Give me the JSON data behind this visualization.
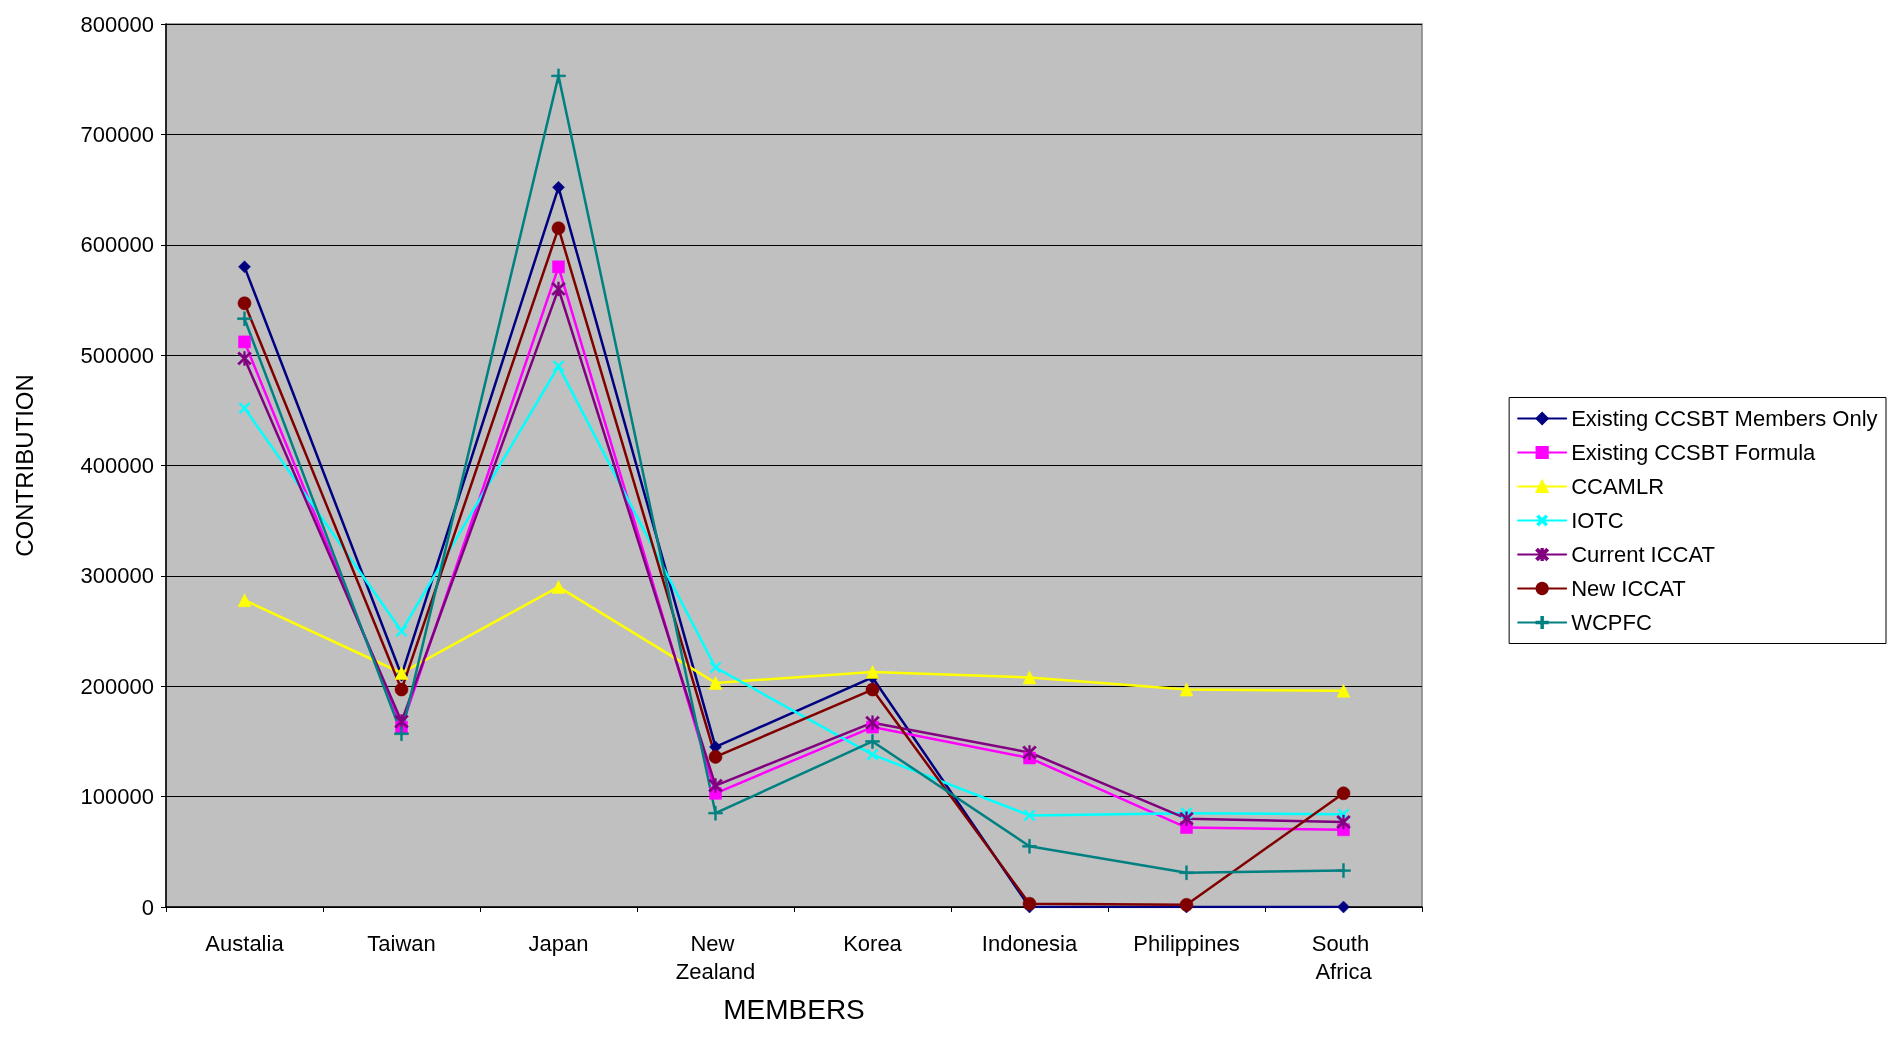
{
  "chart_data": {
    "type": "line",
    "xlabel": "MEMBERS",
    "ylabel": "CONTRIBUTION",
    "categories": [
      "Austalia",
      "Taiwan",
      "Japan",
      "New Zealand",
      "Korea",
      "Indonesia",
      "Philippines",
      "South Africa"
    ],
    "ylim": [
      0,
      800000
    ],
    "yticks": [
      0,
      100000,
      200000,
      300000,
      400000,
      500000,
      600000,
      700000,
      800000
    ],
    "grid": "y",
    "legend": "right",
    "line_style": "solid",
    "series": [
      {
        "name": "Existing CCSBT Members Only",
        "color": "#000080",
        "marker": "diamond",
        "values": [
          580000,
          210000,
          652000,
          145000,
          208000,
          0,
          0,
          0
        ]
      },
      {
        "name": "Existing CCSBT Formula",
        "color": "#ff00ff",
        "marker": "square",
        "values": [
          512000,
          163000,
          580000,
          103000,
          163000,
          135000,
          72000,
          70000
        ]
      },
      {
        "name": "CCAMLR",
        "color": "#ffff00",
        "marker": "triangle",
        "values": [
          278000,
          212000,
          290000,
          203000,
          213000,
          208000,
          197000,
          196000
        ]
      },
      {
        "name": "IOTC",
        "color": "#00ffff",
        "marker": "cross",
        "values": [
          452000,
          250000,
          490000,
          217000,
          138000,
          83000,
          85000,
          84000
        ]
      },
      {
        "name": "Current ICCAT",
        "color": "#800080",
        "marker": "cross",
        "values": [
          497000,
          168000,
          560000,
          110000,
          167000,
          140000,
          80000,
          77000
        ]
      },
      {
        "name": "New ICCAT",
        "color": "#800000",
        "marker": "circle",
        "values": [
          547000,
          197000,
          615000,
          136000,
          197000,
          3000,
          2000,
          103000
        ]
      },
      {
        "name": "WCPFC",
        "color": "#008080",
        "marker": "cross",
        "values": [
          533000,
          157000,
          753000,
          85000,
          150000,
          55000,
          31000,
          33000
        ]
      }
    ]
  }
}
